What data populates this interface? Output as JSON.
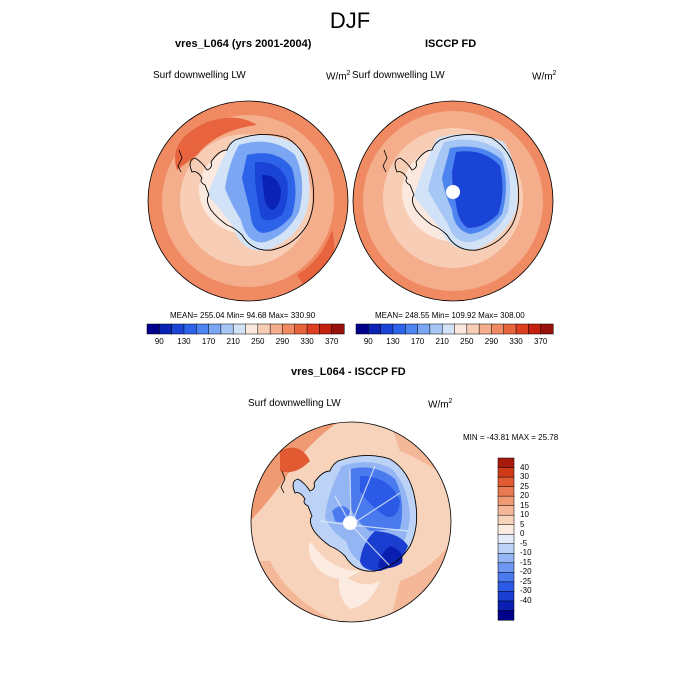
{
  "figure": {
    "season": "DJF"
  },
  "panels": [
    {
      "title": "vres_L064 (yrs 2001-2004)",
      "left_label": "Surf downwelling LW",
      "units_base": "W/m",
      "units_exp": "2",
      "stats": "MEAN= 255.04  Min=  94.68  Max= 330.90",
      "pole_hole": false
    },
    {
      "title": "ISCCP FD",
      "left_label": "Surf downwelling LW",
      "units_base": "W/m",
      "units_exp": "2",
      "stats": "MEAN= 248.55  Min= 109.92  Max= 308.00",
      "pole_hole": true
    },
    {
      "title": "vres_L064 - ISCCP FD",
      "left_label": "Surf downwelling LW",
      "units_base": "W/m",
      "units_exp": "2",
      "stats": "MIN = -43.81  MAX =  25.78",
      "pole_hole": true
    }
  ],
  "colorbars": {
    "absolute": {
      "colors": [
        "#00008b",
        "#0a23b4",
        "#1a44d6",
        "#2d63e8",
        "#4d84f0",
        "#7aa6f3",
        "#a6c6f5",
        "#d3e3f7",
        "#fbe9df",
        "#f8cdb6",
        "#f4ae8c",
        "#ef8a63",
        "#e8643e",
        "#de3f20",
        "#c4200f",
        "#97100a"
      ],
      "labels": [
        "90",
        "130",
        "170",
        "210",
        "250",
        "290",
        "330",
        "370"
      ]
    },
    "difference": {
      "colors": [
        "#00008b",
        "#0a1fb0",
        "#1a3ed0",
        "#2b5ae6",
        "#4a7aee",
        "#6d97f1",
        "#94b5f4",
        "#bcd2f6",
        "#e3ecf8",
        "#fbebe0",
        "#f8d3bc",
        "#f4b898",
        "#f09a74",
        "#ea7a51",
        "#e25a31",
        "#d13a19",
        "#a81a0c"
      ],
      "labels": [
        "40",
        "30",
        "25",
        "20",
        "15",
        "10",
        "5",
        "0",
        "-5",
        "-10",
        "-15",
        "-20",
        "-25",
        "-30",
        "-40"
      ]
    }
  }
}
